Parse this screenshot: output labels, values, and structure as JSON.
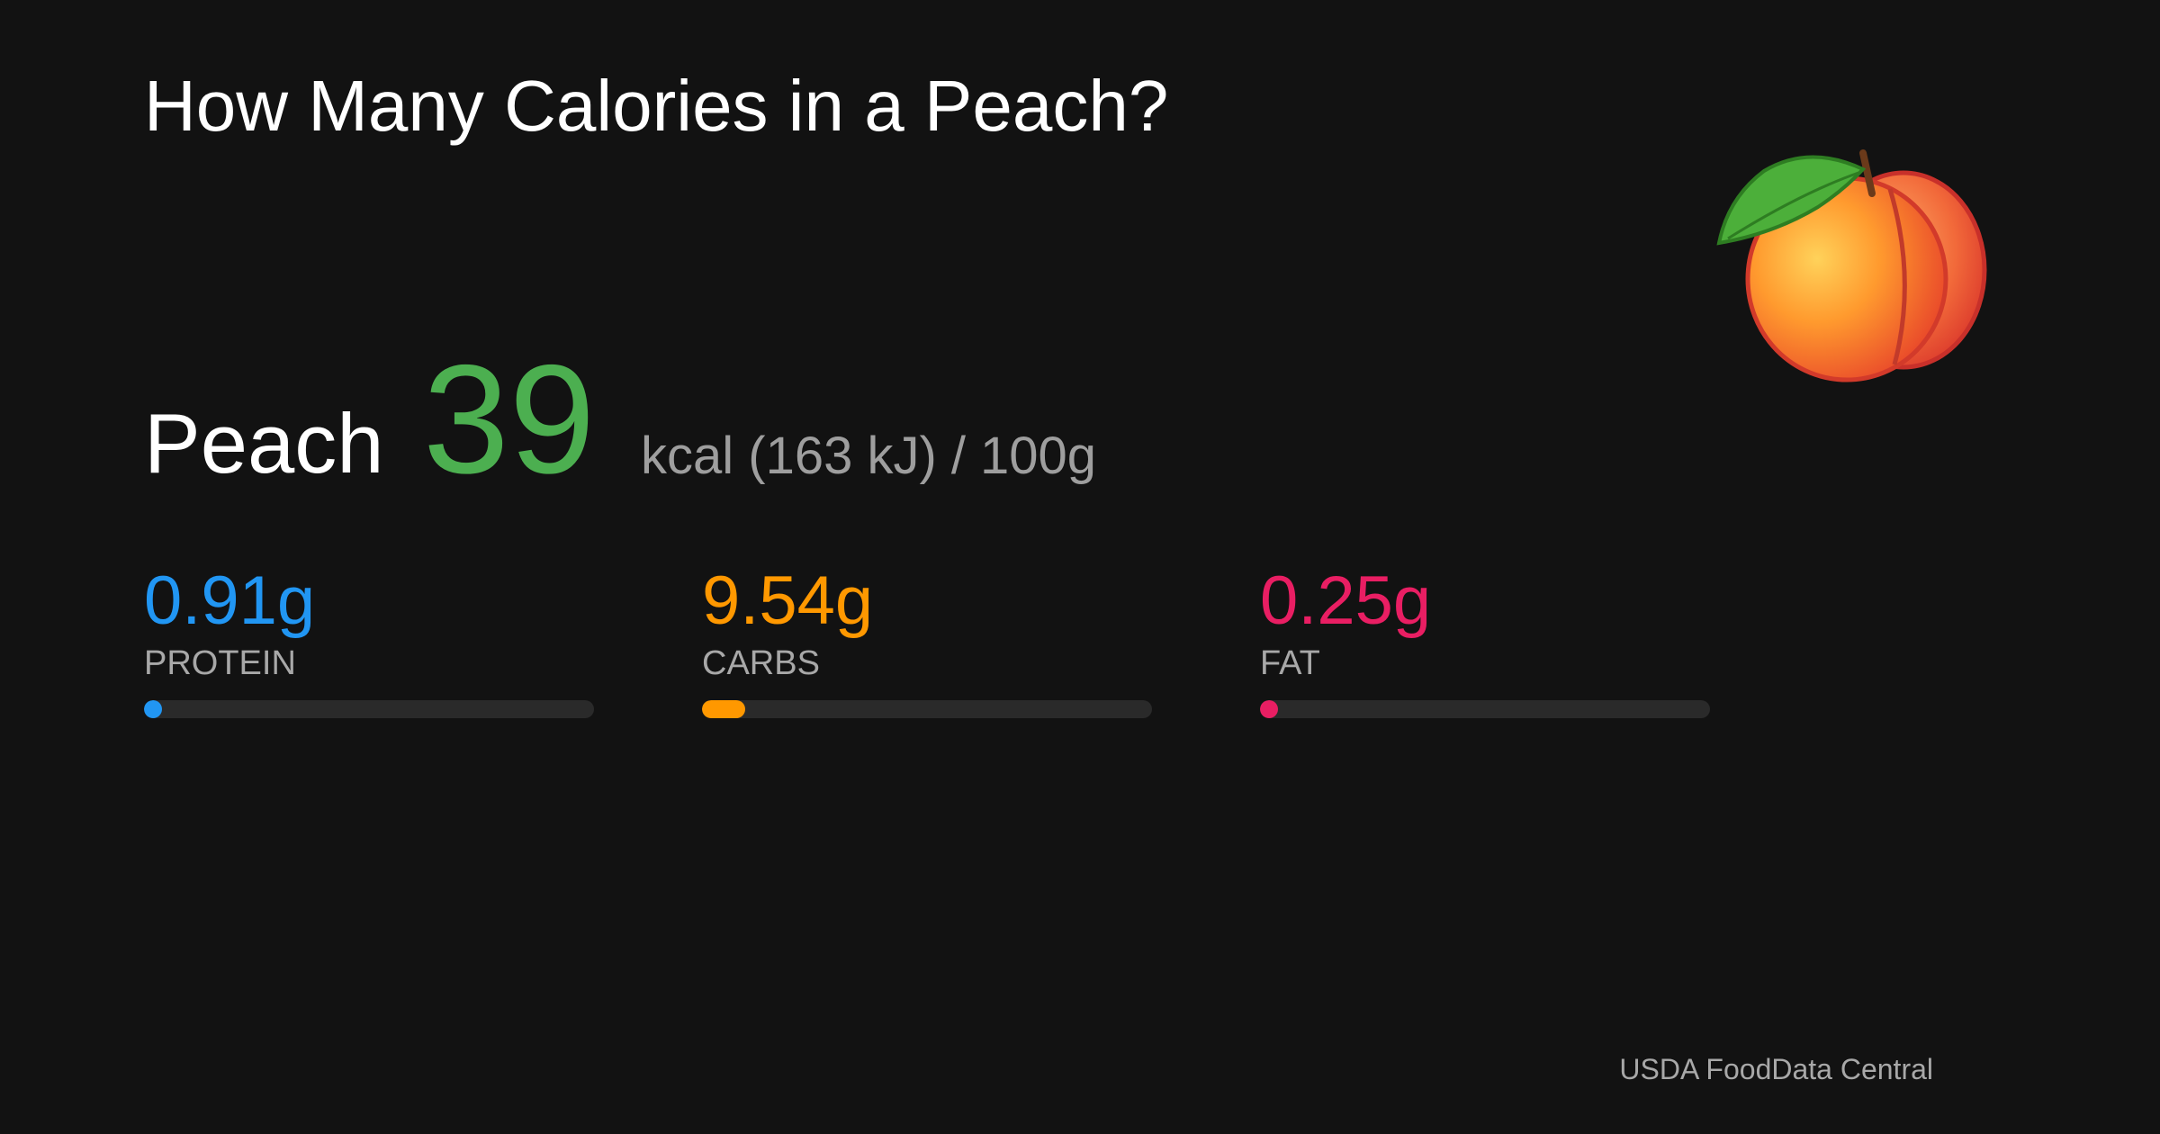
{
  "header": {
    "title": "How Many Calories in a Peach?"
  },
  "food": {
    "name": "Peach",
    "calories": 39,
    "energy": "kcal (163 kJ) /",
    "serving": {
      "value": 100,
      "label": "100g"
    }
  },
  "macros": [
    {
      "amount": 0.91,
      "amount_label": "0.91g",
      "name": "PROTEIN",
      "color": "#2196f3"
    },
    {
      "amount": 9.54,
      "amount_label": "9.54g",
      "name": "CARBS",
      "color": "#ff9800"
    },
    {
      "amount": 0.25,
      "amount_label": "0.25g",
      "name": "FAT",
      "color": "#e91e63"
    }
  ],
  "footer": {
    "source": "USDA FoodData Central"
  }
}
